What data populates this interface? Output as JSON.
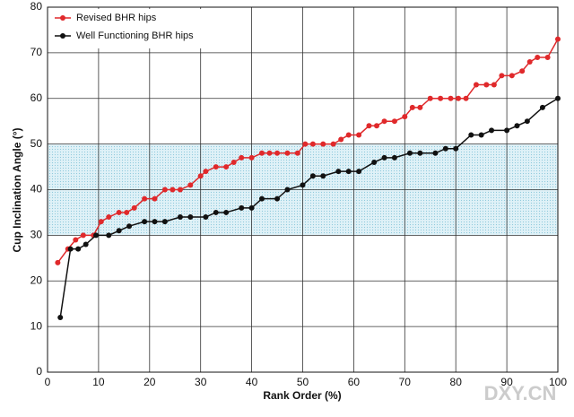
{
  "chart_data": {
    "type": "line",
    "xlabel": "Rank Order (%)",
    "ylabel": "Cup Inclination Angle (°)",
    "xlim": [
      0,
      100
    ],
    "ylim": [
      0,
      80
    ],
    "xticks": [
      0,
      10,
      20,
      30,
      40,
      50,
      60,
      70,
      80,
      90,
      100
    ],
    "yticks": [
      0,
      10,
      20,
      30,
      40,
      50,
      60,
      70,
      80
    ],
    "grid": true,
    "legend": "upper left",
    "shaded_range": [
      30,
      50
    ],
    "shaded_color": "#bfe3f0",
    "watermark": "DXY.CN",
    "series": [
      {
        "name": "Revised BHR hips",
        "color": "#e0292b",
        "x": [
          2,
          4,
          5.5,
          7,
          9,
          10.5,
          12,
          14,
          15.5,
          17,
          19,
          21,
          23,
          24.5,
          26,
          28,
          30,
          31,
          33,
          35,
          36.5,
          38,
          40,
          42,
          43.5,
          45,
          47,
          49,
          50.5,
          52,
          54,
          56,
          57.5,
          59,
          61,
          63,
          64.5,
          66,
          68,
          70,
          71.5,
          73,
          75,
          77,
          79,
          80.5,
          82,
          84,
          86,
          87.5,
          89,
          91,
          93,
          94.5,
          96,
          98,
          100
        ],
        "values": [
          24,
          27,
          29,
          30,
          30,
          33,
          34,
          35,
          35,
          36,
          38,
          38,
          40,
          40,
          40,
          41,
          43,
          44,
          45,
          45,
          46,
          47,
          47,
          48,
          48,
          48,
          48,
          48,
          50,
          50,
          50,
          50,
          51,
          52,
          52,
          54,
          54,
          55,
          55,
          56,
          58,
          58,
          60,
          60,
          60,
          60,
          60,
          63,
          63,
          63,
          65,
          65,
          66,
          68,
          69,
          69,
          73
        ]
      },
      {
        "name": "Well Functioning BHR hips",
        "color": "#111111",
        "x": [
          2.5,
          4.5,
          6,
          7.5,
          9.5,
          12,
          14,
          16,
          19,
          21,
          23,
          26,
          28,
          31,
          33,
          35,
          38,
          40,
          42,
          45,
          47,
          50,
          52,
          54,
          57,
          59,
          61,
          64,
          66,
          68,
          71,
          73,
          76,
          78,
          80,
          83,
          85,
          87,
          90,
          92,
          94,
          97,
          100
        ],
        "values": [
          12,
          27,
          27,
          28,
          30,
          30,
          31,
          32,
          33,
          33,
          33,
          34,
          34,
          34,
          35,
          35,
          36,
          36,
          38,
          38,
          40,
          41,
          43,
          43,
          44,
          44,
          44,
          46,
          47,
          47,
          48,
          48,
          48,
          49,
          49,
          52,
          52,
          53,
          53,
          54,
          55,
          58,
          60
        ]
      }
    ]
  }
}
